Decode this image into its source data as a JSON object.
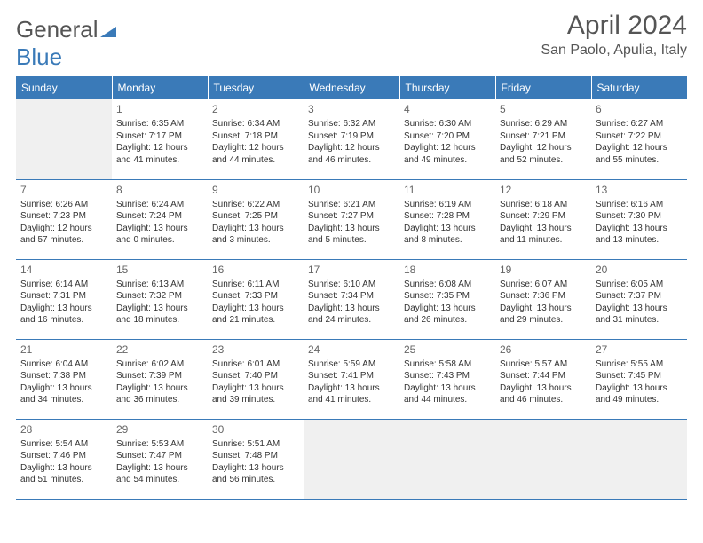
{
  "logo": {
    "part1": "General",
    "part2": "Blue"
  },
  "title": "April 2024",
  "location": "San Paolo, Apulia, Italy",
  "colors": {
    "header_bg": "#3a7ab8",
    "header_text": "#ffffff",
    "body_text": "#333333",
    "daynum_text": "#666666",
    "blank_bg": "#f0f0f0",
    "border": "#3a7ab8"
  },
  "day_headers": [
    "Sunday",
    "Monday",
    "Tuesday",
    "Wednesday",
    "Thursday",
    "Friday",
    "Saturday"
  ],
  "weeks": [
    [
      null,
      {
        "n": "1",
        "sr": "6:35 AM",
        "ss": "7:17 PM",
        "dl": "12 hours and 41 minutes."
      },
      {
        "n": "2",
        "sr": "6:34 AM",
        "ss": "7:18 PM",
        "dl": "12 hours and 44 minutes."
      },
      {
        "n": "3",
        "sr": "6:32 AM",
        "ss": "7:19 PM",
        "dl": "12 hours and 46 minutes."
      },
      {
        "n": "4",
        "sr": "6:30 AM",
        "ss": "7:20 PM",
        "dl": "12 hours and 49 minutes."
      },
      {
        "n": "5",
        "sr": "6:29 AM",
        "ss": "7:21 PM",
        "dl": "12 hours and 52 minutes."
      },
      {
        "n": "6",
        "sr": "6:27 AM",
        "ss": "7:22 PM",
        "dl": "12 hours and 55 minutes."
      }
    ],
    [
      {
        "n": "7",
        "sr": "6:26 AM",
        "ss": "7:23 PM",
        "dl": "12 hours and 57 minutes."
      },
      {
        "n": "8",
        "sr": "6:24 AM",
        "ss": "7:24 PM",
        "dl": "13 hours and 0 minutes."
      },
      {
        "n": "9",
        "sr": "6:22 AM",
        "ss": "7:25 PM",
        "dl": "13 hours and 3 minutes."
      },
      {
        "n": "10",
        "sr": "6:21 AM",
        "ss": "7:27 PM",
        "dl": "13 hours and 5 minutes."
      },
      {
        "n": "11",
        "sr": "6:19 AM",
        "ss": "7:28 PM",
        "dl": "13 hours and 8 minutes."
      },
      {
        "n": "12",
        "sr": "6:18 AM",
        "ss": "7:29 PM",
        "dl": "13 hours and 11 minutes."
      },
      {
        "n": "13",
        "sr": "6:16 AM",
        "ss": "7:30 PM",
        "dl": "13 hours and 13 minutes."
      }
    ],
    [
      {
        "n": "14",
        "sr": "6:14 AM",
        "ss": "7:31 PM",
        "dl": "13 hours and 16 minutes."
      },
      {
        "n": "15",
        "sr": "6:13 AM",
        "ss": "7:32 PM",
        "dl": "13 hours and 18 minutes."
      },
      {
        "n": "16",
        "sr": "6:11 AM",
        "ss": "7:33 PM",
        "dl": "13 hours and 21 minutes."
      },
      {
        "n": "17",
        "sr": "6:10 AM",
        "ss": "7:34 PM",
        "dl": "13 hours and 24 minutes."
      },
      {
        "n": "18",
        "sr": "6:08 AM",
        "ss": "7:35 PM",
        "dl": "13 hours and 26 minutes."
      },
      {
        "n": "19",
        "sr": "6:07 AM",
        "ss": "7:36 PM",
        "dl": "13 hours and 29 minutes."
      },
      {
        "n": "20",
        "sr": "6:05 AM",
        "ss": "7:37 PM",
        "dl": "13 hours and 31 minutes."
      }
    ],
    [
      {
        "n": "21",
        "sr": "6:04 AM",
        "ss": "7:38 PM",
        "dl": "13 hours and 34 minutes."
      },
      {
        "n": "22",
        "sr": "6:02 AM",
        "ss": "7:39 PM",
        "dl": "13 hours and 36 minutes."
      },
      {
        "n": "23",
        "sr": "6:01 AM",
        "ss": "7:40 PM",
        "dl": "13 hours and 39 minutes."
      },
      {
        "n": "24",
        "sr": "5:59 AM",
        "ss": "7:41 PM",
        "dl": "13 hours and 41 minutes."
      },
      {
        "n": "25",
        "sr": "5:58 AM",
        "ss": "7:43 PM",
        "dl": "13 hours and 44 minutes."
      },
      {
        "n": "26",
        "sr": "5:57 AM",
        "ss": "7:44 PM",
        "dl": "13 hours and 46 minutes."
      },
      {
        "n": "27",
        "sr": "5:55 AM",
        "ss": "7:45 PM",
        "dl": "13 hours and 49 minutes."
      }
    ],
    [
      {
        "n": "28",
        "sr": "5:54 AM",
        "ss": "7:46 PM",
        "dl": "13 hours and 51 minutes."
      },
      {
        "n": "29",
        "sr": "5:53 AM",
        "ss": "7:47 PM",
        "dl": "13 hours and 54 minutes."
      },
      {
        "n": "30",
        "sr": "5:51 AM",
        "ss": "7:48 PM",
        "dl": "13 hours and 56 minutes."
      },
      null,
      null,
      null,
      null
    ]
  ],
  "labels": {
    "sunrise": "Sunrise: ",
    "sunset": "Sunset: ",
    "daylight": "Daylight: "
  }
}
